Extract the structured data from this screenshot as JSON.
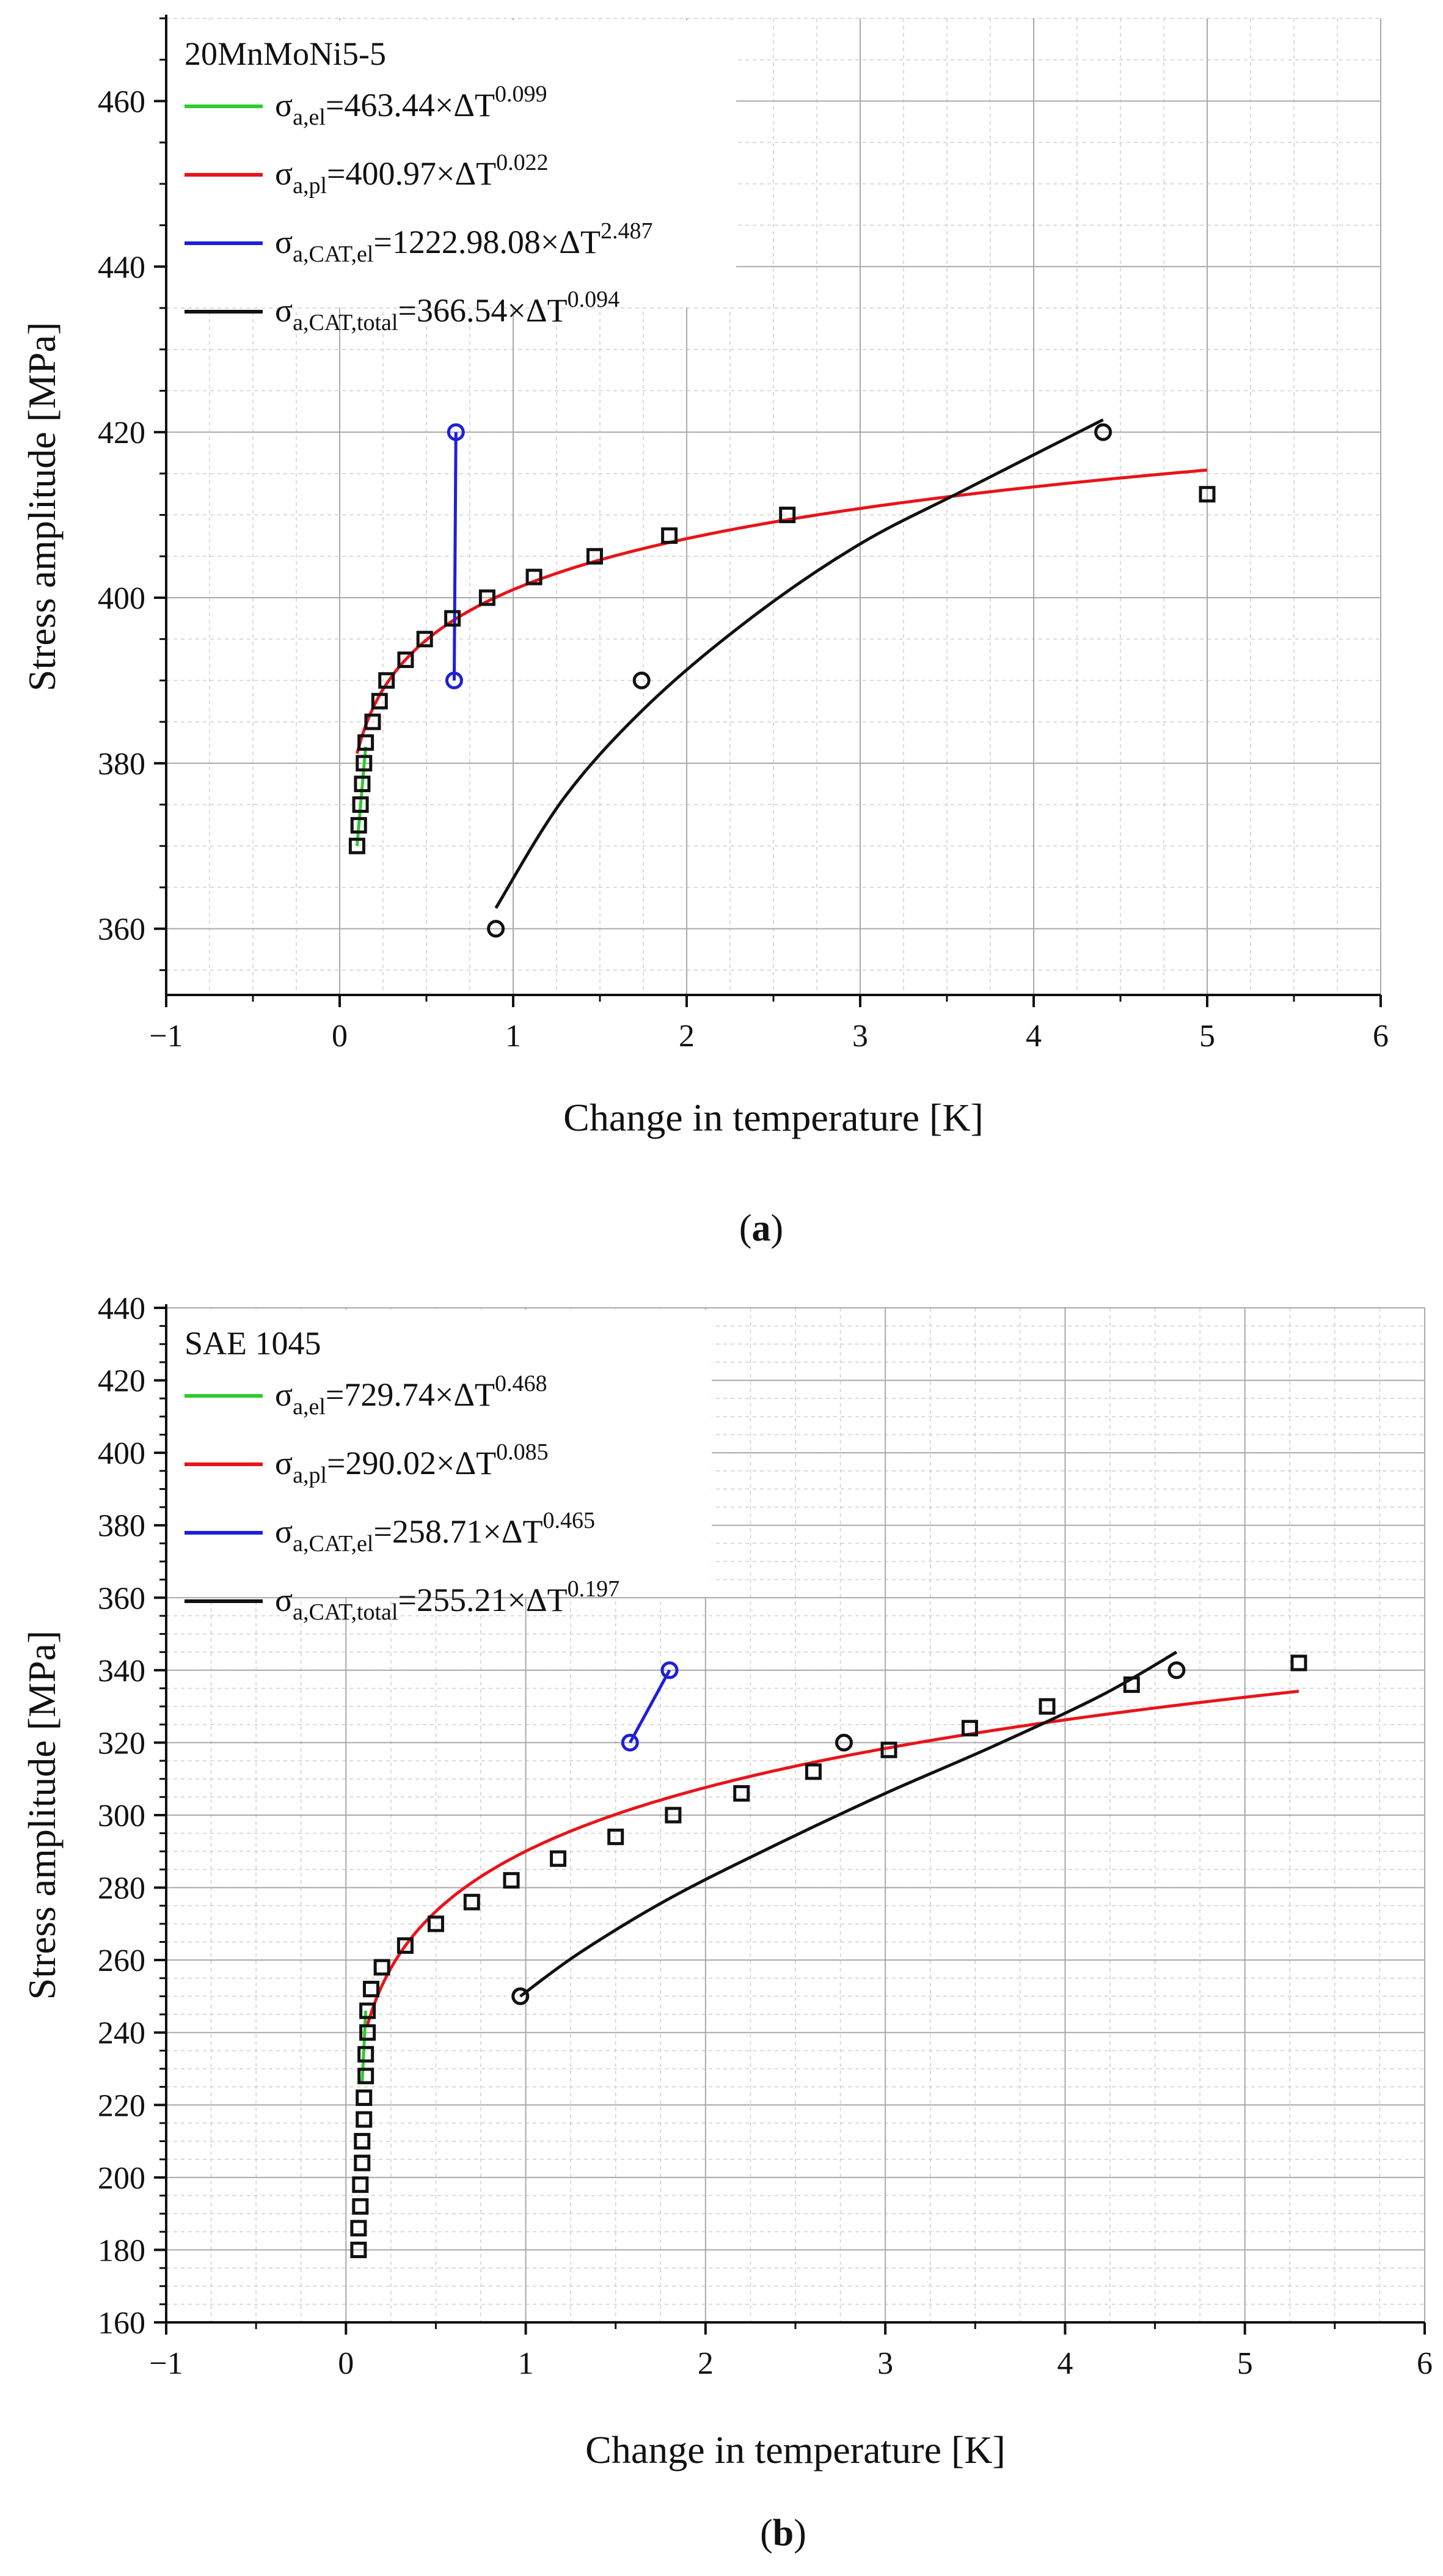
{
  "chart_data": [
    {
      "type": "scatter",
      "panel_label": "a",
      "material": "20MnMoNi5-5",
      "xlabel": "Change in temperature [K]",
      "ylabel": "Stress amplitude [MPa]",
      "xlim": [
        -1,
        6
      ],
      "ylim": [
        352,
        470
      ],
      "xticks": [
        -1,
        0,
        1,
        2,
        3,
        4,
        5,
        6
      ],
      "yticks": [
        360,
        380,
        400,
        420,
        440,
        460
      ],
      "legend": [
        {
          "color": "#2ecc2e",
          "prefix": "σ",
          "sub": "a,el",
          "mid": "=463.44×ΔT",
          "sup": "0.099"
        },
        {
          "color": "#e8141a",
          "prefix": "σ",
          "sub": "a,pl",
          "mid": "=400.97×ΔT",
          "sup": "0.022"
        },
        {
          "color": "#1f1fd6",
          "prefix": "σ",
          "sub": "a,CAT,el",
          "mid": "=1222.98.08×ΔT",
          "sup": "2.487"
        },
        {
          "color": "#111111",
          "prefix": "σ",
          "sub": "a,CAT,total",
          "mid": "=366.54×ΔT",
          "sup": "0.094"
        }
      ],
      "squares": [
        [
          0.1,
          370
        ],
        [
          0.11,
          372.5
        ],
        [
          0.12,
          375
        ],
        [
          0.13,
          377.5
        ],
        [
          0.14,
          380
        ],
        [
          0.15,
          382.5
        ],
        [
          0.19,
          385
        ],
        [
          0.23,
          387.5
        ],
        [
          0.27,
          390
        ],
        [
          0.38,
          392.5
        ],
        [
          0.49,
          395
        ],
        [
          0.65,
          397.5
        ],
        [
          0.85,
          400
        ],
        [
          1.12,
          402.5
        ],
        [
          1.47,
          405
        ],
        [
          1.9,
          407.5
        ],
        [
          2.58,
          410
        ],
        [
          5.0,
          412.5
        ]
      ],
      "circles_black": [
        [
          0.9,
          360
        ],
        [
          1.74,
          390
        ],
        [
          4.4,
          420
        ]
      ],
      "circles_blue": [
        [
          0.66,
          390
        ],
        [
          0.67,
          420
        ]
      ],
      "green_line": [
        [
          0.1,
          370
        ],
        [
          0.15,
          382
        ]
      ],
      "red_curve": {
        "a": 400.97,
        "b": 0.022,
        "x0": 0.1,
        "x1": 5.0
      },
      "black_curve": {
        "points": [
          [
            0.9,
            362.5
          ],
          [
            1.3,
            376
          ],
          [
            1.8,
            387.5
          ],
          [
            2.4,
            398
          ],
          [
            3.0,
            406.5
          ],
          [
            3.6,
            413
          ],
          [
            4.4,
            421.5
          ]
        ]
      },
      "blue_line": [
        [
          0.66,
          390
        ],
        [
          0.67,
          420
        ]
      ]
    },
    {
      "type": "scatter",
      "panel_label": "b",
      "material": "SAE 1045",
      "xlabel": "Change in temperature [K]",
      "ylabel": "Stress amplitude [MPa]",
      "xlim": [
        -1,
        6
      ],
      "ylim": [
        160,
        440
      ],
      "xticks": [
        -1,
        0,
        1,
        2,
        3,
        4,
        5,
        6
      ],
      "yticks": [
        160,
        180,
        200,
        220,
        240,
        260,
        280,
        300,
        320,
        340,
        360,
        380,
        400,
        420,
        440
      ],
      "legend": [
        {
          "color": "#2ecc2e",
          "prefix": "σ",
          "sub": "a,el",
          "mid": "=729.74×ΔT",
          "sup": "0.468"
        },
        {
          "color": "#e8141a",
          "prefix": "σ",
          "sub": "a,pl",
          "mid": "=290.02×ΔT",
          "sup": "0.085"
        },
        {
          "color": "#1f1fd6",
          "prefix": "σ",
          "sub": "a,CAT,el",
          "mid": "=258.71×ΔT",
          "sup": "0.465"
        },
        {
          "color": "#111111",
          "prefix": "σ",
          "sub": "a,CAT,total",
          "mid": "=255.21×ΔT",
          "sup": "0.197"
        }
      ],
      "squares": [
        [
          0.07,
          180
        ],
        [
          0.07,
          186
        ],
        [
          0.08,
          192
        ],
        [
          0.08,
          198
        ],
        [
          0.09,
          204
        ],
        [
          0.09,
          210
        ],
        [
          0.1,
          216
        ],
        [
          0.1,
          222
        ],
        [
          0.11,
          228
        ],
        [
          0.11,
          234
        ],
        [
          0.12,
          240
        ],
        [
          0.12,
          246
        ],
        [
          0.14,
          252
        ],
        [
          0.2,
          258
        ],
        [
          0.33,
          264
        ],
        [
          0.5,
          270
        ],
        [
          0.7,
          276
        ],
        [
          0.92,
          282
        ],
        [
          1.18,
          288
        ],
        [
          1.5,
          294
        ],
        [
          1.82,
          300
        ],
        [
          2.2,
          306
        ],
        [
          2.6,
          312
        ],
        [
          3.02,
          318
        ],
        [
          3.47,
          324
        ],
        [
          3.9,
          330
        ],
        [
          4.37,
          336
        ],
        [
          5.3,
          342
        ]
      ],
      "circles_black": [
        [
          0.97,
          250
        ],
        [
          2.77,
          320
        ],
        [
          4.62,
          340
        ]
      ],
      "circles_blue": [
        [
          1.58,
          320
        ],
        [
          1.8,
          340
        ]
      ],
      "green_line": [
        [
          0.09,
          226
        ],
        [
          0.11,
          246
        ]
      ],
      "red_curve": {
        "a": 290.02,
        "b": 0.085,
        "x0": 0.12,
        "x1": 5.3
      },
      "black_curve": {
        "points": [
          [
            0.97,
            250
          ],
          [
            1.3,
            262
          ],
          [
            1.8,
            277
          ],
          [
            2.4,
            292
          ],
          [
            3.0,
            306
          ],
          [
            3.6,
            319
          ],
          [
            4.2,
            333
          ],
          [
            4.62,
            345
          ]
        ]
      },
      "blue_line": [
        [
          1.58,
          320
        ],
        [
          1.8,
          340
        ]
      ]
    }
  ]
}
